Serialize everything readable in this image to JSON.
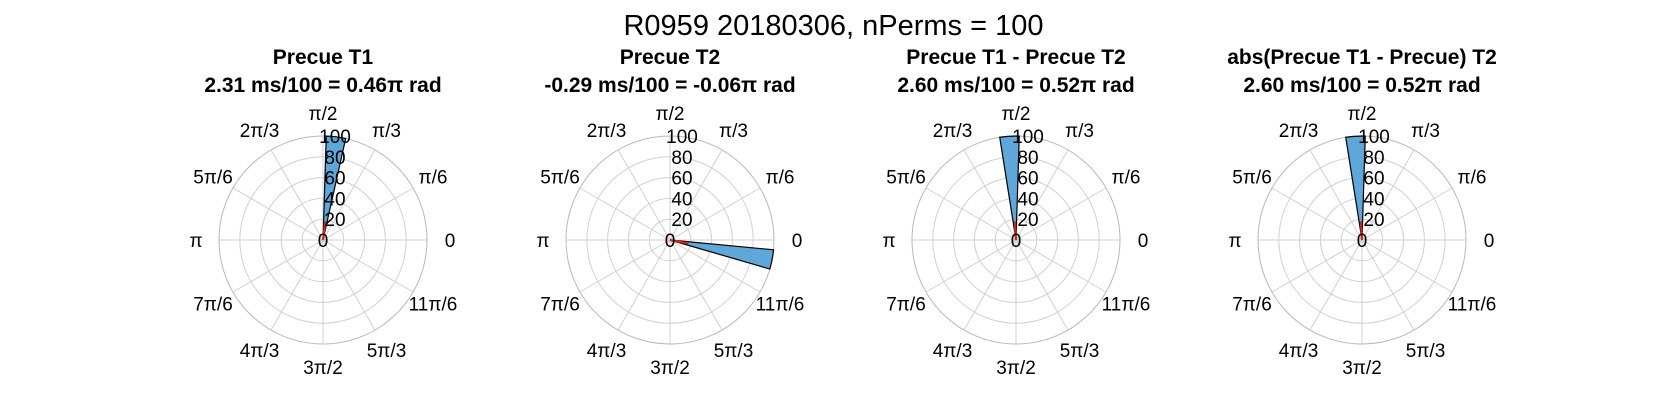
{
  "figure": {
    "suptitle": "R0959 20180306, nPerms = 100"
  },
  "style": {
    "bar_fill": "#5ea7d8",
    "bar_edge": "#000000",
    "mean_vector": "#c8241f",
    "grid": "#d0d0d0",
    "outer_ring": "#b8b8b8"
  },
  "chart_data": [
    {
      "type": "polar-histogram",
      "title_line1": "Precue T1",
      "title_line2": "2.31 ms/100 = 0.46π rad",
      "rlim": [
        0,
        100
      ],
      "r_ticks": [
        "20",
        "40",
        "60",
        "80",
        "100"
      ],
      "theta_ticks": [
        "0",
        "π/6",
        "π/3",
        "π/2",
        "2π/3",
        "5π/6",
        "π",
        "7π/6",
        "4π/3",
        "3π/2",
        "5π/3",
        "11π/6"
      ],
      "r_zero_label": "0",
      "bins": [
        {
          "theta_start_pi": 0.43,
          "theta_end_pi": 0.49,
          "count": 100
        }
      ],
      "mean_angle_pi": 0.46,
      "mean_length": 18
    },
    {
      "type": "polar-histogram",
      "title_line1": "Precue T2",
      "title_line2": "-0.29 ms/100 = -0.06π rad",
      "rlim": [
        0,
        100
      ],
      "r_ticks": [
        "20",
        "40",
        "60",
        "80",
        "100"
      ],
      "theta_ticks": [
        "0",
        "π/6",
        "π/3",
        "π/2",
        "2π/3",
        "5π/6",
        "π",
        "7π/6",
        "4π/3",
        "3π/2",
        "5π/3",
        "11π/6"
      ],
      "r_zero_label": "0",
      "bins": [
        {
          "theta_start_pi": -0.09,
          "theta_end_pi": -0.03,
          "count": 100
        }
      ],
      "mean_angle_pi": -0.06,
      "mean_length": 18
    },
    {
      "type": "polar-histogram",
      "title_line1": "Precue T1 - Precue T2",
      "title_line2": "2.60 ms/100 = 0.52π rad",
      "rlim": [
        0,
        100
      ],
      "r_ticks": [
        "20",
        "40",
        "60",
        "80",
        "100"
      ],
      "theta_ticks": [
        "0",
        "π/6",
        "π/3",
        "π/2",
        "2π/3",
        "5π/6",
        "π",
        "7π/6",
        "4π/3",
        "3π/2",
        "5π/3",
        "11π/6"
      ],
      "r_zero_label": "0",
      "bins": [
        {
          "theta_start_pi": 0.49,
          "theta_end_pi": 0.55,
          "count": 100
        }
      ],
      "mean_angle_pi": 0.52,
      "mean_length": 18
    },
    {
      "type": "polar-histogram",
      "title_line1": "abs(Precue T1 - Precue) T2",
      "title_line2": "2.60 ms/100 = 0.52π rad",
      "rlim": [
        0,
        100
      ],
      "r_ticks": [
        "20",
        "40",
        "60",
        "80",
        "100"
      ],
      "theta_ticks": [
        "0",
        "π/6",
        "π/3",
        "π/2",
        "2π/3",
        "5π/6",
        "π",
        "7π/6",
        "4π/3",
        "3π/2",
        "5π/3",
        "11π/6"
      ],
      "r_zero_label": "0",
      "bins": [
        {
          "theta_start_pi": 0.49,
          "theta_end_pi": 0.55,
          "count": 100
        }
      ],
      "mean_angle_pi": 0.52,
      "mean_length": 18
    }
  ]
}
